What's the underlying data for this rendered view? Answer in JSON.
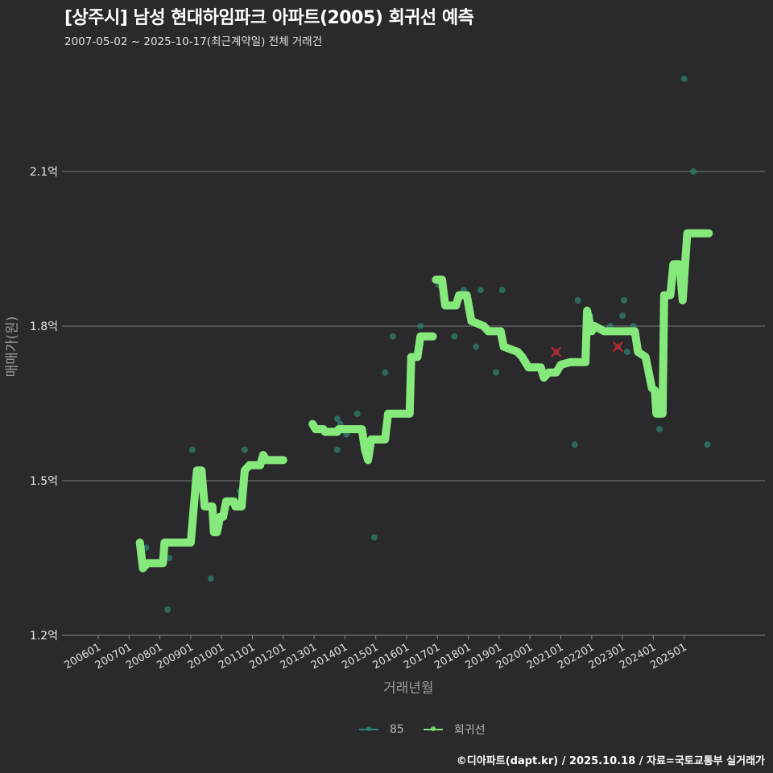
{
  "header": {
    "title": "[상주시] 남성 현대하임파크 아파트(2005) 회귀선 예측",
    "subtitle": "2007-05-02 ~ 2025-10-17(최근계약일) 전체 거래건"
  },
  "axes": {
    "ylabel": "매매가(원)",
    "xlabel": "거래년월"
  },
  "legend": {
    "items": [
      {
        "label": "85",
        "color": "#2a8a7a"
      },
      {
        "label": "회귀선",
        "color": "#7fe87a"
      }
    ]
  },
  "footer": "©디아파트(dapt.kr) / 2025.10.18 / 자료=국토교통부 실거래가",
  "colors": {
    "background": "#2a292b",
    "grid": "#7a7a7a",
    "regression": "#86e97c",
    "scatter": "#2d7f72",
    "outlier": "#c0262d"
  },
  "chart_data": {
    "type": "line",
    "title": "[상주시] 남성 현대하임파크 아파트(2005) 회귀선 예측",
    "subtitle": "2007-05-02 ~ 2025-10-17(최근계약일) 전체 거래건",
    "xlabel": "거래년월",
    "ylabel": "매매가(원)",
    "unit": "억",
    "ylim": [
      1.2,
      2.3
    ],
    "yticks": [
      1.2,
      1.5,
      1.8,
      2.1
    ],
    "ytick_labels": [
      "1.2억",
      "1.5억",
      "1.8억",
      "2.1억"
    ],
    "xticks": [
      "200601",
      "200701",
      "200801",
      "200901",
      "201001",
      "201101",
      "201201",
      "201301",
      "201401",
      "201501",
      "201601",
      "201701",
      "201801",
      "201901",
      "202001",
      "202101",
      "202201",
      "202301",
      "202401",
      "202501"
    ],
    "grid": "horizontal",
    "legend_position": "bottom",
    "series": [
      {
        "name": "회귀선",
        "kind": "line",
        "segments": [
          [
            [
              2007.35,
              1.38
            ],
            [
              2007.45,
              1.33
            ],
            [
              2007.6,
              1.34
            ],
            [
              2008.1,
              1.34
            ],
            [
              2008.15,
              1.38
            ],
            [
              2009.0,
              1.38
            ],
            [
              2009.2,
              1.52
            ],
            [
              2009.35,
              1.52
            ],
            [
              2009.45,
              1.45
            ],
            [
              2009.7,
              1.45
            ],
            [
              2009.75,
              1.4
            ],
            [
              2009.85,
              1.4
            ],
            [
              2009.95,
              1.43
            ],
            [
              2010.05,
              1.43
            ],
            [
              2010.15,
              1.46
            ],
            [
              2010.4,
              1.46
            ],
            [
              2010.45,
              1.45
            ],
            [
              2010.65,
              1.45
            ],
            [
              2010.75,
              1.52
            ],
            [
              2010.9,
              1.53
            ],
            [
              2011.25,
              1.53
            ],
            [
              2011.35,
              1.55
            ],
            [
              2011.45,
              1.54
            ],
            [
              2012.0,
              1.54
            ]
          ],
          [
            [
              2012.95,
              1.61
            ],
            [
              2013.05,
              1.6
            ],
            [
              2013.3,
              1.6
            ],
            [
              2013.35,
              1.595
            ],
            [
              2013.75,
              1.595
            ],
            [
              2013.8,
              1.6
            ],
            [
              2014.55,
              1.6
            ],
            [
              2014.65,
              1.56
            ],
            [
              2014.75,
              1.54
            ],
            [
              2014.85,
              1.58
            ],
            [
              2015.3,
              1.58
            ],
            [
              2015.4,
              1.63
            ],
            [
              2016.1,
              1.63
            ],
            [
              2016.15,
              1.74
            ],
            [
              2016.35,
              1.74
            ],
            [
              2016.45,
              1.78
            ],
            [
              2016.85,
              1.78
            ]
          ],
          [
            [
              2016.95,
              1.89
            ],
            [
              2017.15,
              1.89
            ],
            [
              2017.25,
              1.84
            ],
            [
              2017.6,
              1.84
            ],
            [
              2017.7,
              1.86
            ],
            [
              2017.95,
              1.86
            ],
            [
              2018.1,
              1.81
            ],
            [
              2018.5,
              1.8
            ],
            [
              2018.65,
              1.79
            ],
            [
              2019.05,
              1.79
            ],
            [
              2019.15,
              1.76
            ],
            [
              2019.6,
              1.75
            ],
            [
              2019.75,
              1.74
            ],
            [
              2019.95,
              1.72
            ],
            [
              2020.35,
              1.72
            ],
            [
              2020.45,
              1.7
            ],
            [
              2020.6,
              1.71
            ],
            [
              2020.85,
              1.71
            ],
            [
              2021.0,
              1.725
            ],
            [
              2021.3,
              1.73
            ],
            [
              2021.8,
              1.73
            ],
            [
              2021.85,
              1.83
            ],
            [
              2022.0,
              1.79
            ],
            [
              2022.1,
              1.8
            ],
            [
              2022.4,
              1.79
            ],
            [
              2022.7,
              1.79
            ],
            [
              2023.4,
              1.79
            ],
            [
              2023.5,
              1.75
            ],
            [
              2023.75,
              1.74
            ],
            [
              2023.95,
              1.68
            ],
            [
              2024.05,
              1.675
            ],
            [
              2024.1,
              1.63
            ],
            [
              2024.3,
              1.63
            ],
            [
              2024.35,
              1.86
            ],
            [
              2024.55,
              1.86
            ],
            [
              2024.65,
              1.92
            ],
            [
              2024.85,
              1.92
            ],
            [
              2024.95,
              1.85
            ],
            [
              2025.1,
              1.98
            ],
            [
              2025.8,
              1.98
            ]
          ]
        ]
      },
      {
        "name": "85",
        "kind": "scatter",
        "points": [
          [
            2007.55,
            1.37
          ],
          [
            2008.3,
            1.35
          ],
          [
            2008.25,
            1.25
          ],
          [
            2009.05,
            1.56
          ],
          [
            2009.35,
            1.5
          ],
          [
            2009.65,
            1.31
          ],
          [
            2010.1,
            1.44
          ],
          [
            2010.6,
            1.48
          ],
          [
            2010.75,
            1.56
          ],
          [
            2013.75,
            1.62
          ],
          [
            2013.85,
            1.61
          ],
          [
            2013.75,
            1.56
          ],
          [
            2014.05,
            1.59
          ],
          [
            2014.4,
            1.63
          ],
          [
            2014.95,
            1.39
          ],
          [
            2015.3,
            1.71
          ],
          [
            2015.55,
            1.78
          ],
          [
            2016.45,
            1.8
          ],
          [
            2017.05,
            1.88
          ],
          [
            2017.55,
            1.78
          ],
          [
            2017.85,
            1.87
          ],
          [
            2018.25,
            1.76
          ],
          [
            2018.4,
            1.87
          ],
          [
            2018.9,
            1.71
          ],
          [
            2019.1,
            1.87
          ],
          [
            2020.85,
            1.71
          ],
          [
            2021.45,
            1.57
          ],
          [
            2021.55,
            1.85
          ],
          [
            2021.95,
            1.82
          ],
          [
            2022.6,
            1.8
          ],
          [
            2023.0,
            1.82
          ],
          [
            2023.05,
            1.85
          ],
          [
            2023.15,
            1.75
          ],
          [
            2023.35,
            1.8
          ],
          [
            2024.2,
            1.6
          ],
          [
            2025.0,
            2.28
          ],
          [
            2025.3,
            2.1
          ],
          [
            2025.75,
            1.57
          ]
        ]
      },
      {
        "name": "outliers",
        "kind": "x-marker",
        "points": [
          [
            2020.85,
            1.75
          ],
          [
            2022.85,
            1.76
          ]
        ]
      }
    ]
  }
}
